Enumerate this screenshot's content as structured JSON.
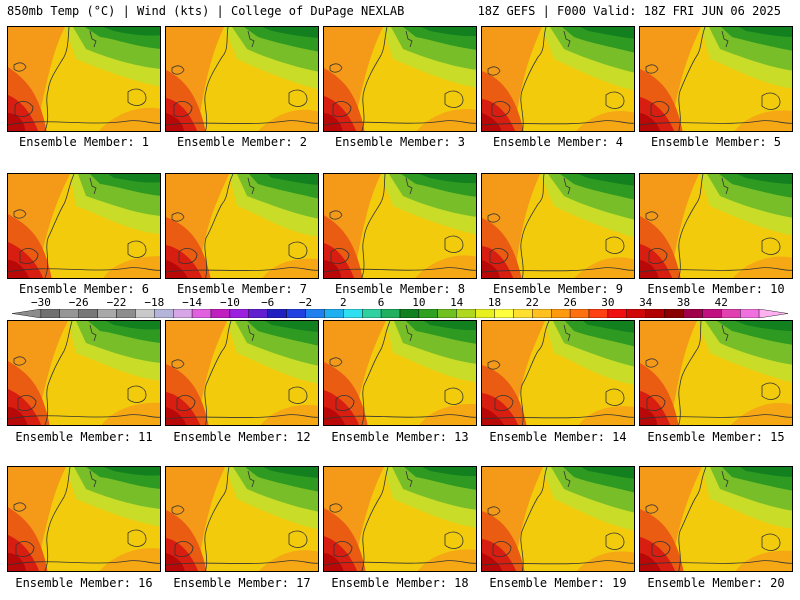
{
  "header": {
    "left": "850mb Temp (°C) | Wind (kts) | College of DuPage NEXLAB",
    "right": "18Z GEFS | F000 Valid: 18Z FRI JUN 06 2025"
  },
  "label_prefix": "Ensemble Member:",
  "members": [
    {
      "label": "Ensemble Member: 1"
    },
    {
      "label": "Ensemble Member: 2"
    },
    {
      "label": "Ensemble Member: 3"
    },
    {
      "label": "Ensemble Member: 4"
    },
    {
      "label": "Ensemble Member: 5"
    },
    {
      "label": "Ensemble Member: 6"
    },
    {
      "label": "Ensemble Member: 7"
    },
    {
      "label": "Ensemble Member: 8"
    },
    {
      "label": "Ensemble Member: 9"
    },
    {
      "label": "Ensemble Member: 10"
    },
    {
      "label": "Ensemble Member: 11"
    },
    {
      "label": "Ensemble Member: 12"
    },
    {
      "label": "Ensemble Member: 13"
    },
    {
      "label": "Ensemble Member: 14"
    },
    {
      "label": "Ensemble Member: 15"
    },
    {
      "label": "Ensemble Member: 16"
    },
    {
      "label": "Ensemble Member: 17"
    },
    {
      "label": "Ensemble Member: 18"
    },
    {
      "label": "Ensemble Member: 19"
    },
    {
      "label": "Ensemble Member: 20"
    }
  ],
  "colorbar": {
    "tick_labels": [
      "-30",
      "-26",
      "-22",
      "-18",
      "-14",
      "-10",
      "-6",
      "-2",
      "2",
      "6",
      "10",
      "14",
      "18",
      "22",
      "26",
      "30",
      "34",
      "38",
      "42"
    ],
    "colors": [
      "#8c8c8c",
      "#707070",
      "#969696",
      "#787878",
      "#a9a9a9",
      "#8d8d8d",
      "#c9c9c9",
      "#b4b4d8",
      "#d6a6e6",
      "#e060e0",
      "#c020c0",
      "#9b20e0",
      "#6020d0",
      "#2020c0",
      "#2040e0",
      "#2080f0",
      "#20b0f0",
      "#30e0f0",
      "#30d0a0",
      "#20b060",
      "#108020",
      "#30a020",
      "#70c020",
      "#b0d820",
      "#e8f020",
      "#ffff40",
      "#ffe030",
      "#ffc020",
      "#ff9a10",
      "#ff7010",
      "#ff4010",
      "#f01010",
      "#d00808",
      "#b00000",
      "#8a0000",
      "#a0004a",
      "#c01080",
      "#e040b0",
      "#f070e0",
      "#ffb0f0"
    ]
  }
}
